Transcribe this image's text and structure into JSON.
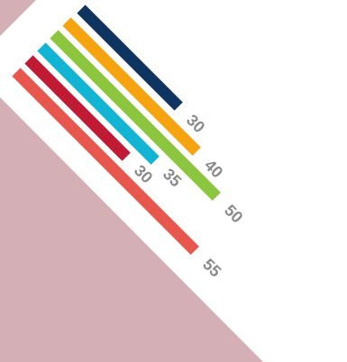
{
  "chart_data": {
    "type": "bar",
    "orientation": "diagonal",
    "background": {
      "panel_color": "#d4afb6",
      "page_color": "#ffffff"
    },
    "labels_rotated": true,
    "series": [
      {
        "value": 30,
        "label": "30",
        "color": "#0f3460"
      },
      {
        "value": 40,
        "label": "40",
        "color": "#f5a30f"
      },
      {
        "value": 50,
        "label": "50",
        "color": "#8cc63f"
      },
      {
        "value": 35,
        "label": "35",
        "color": "#12b4d4"
      },
      {
        "value": 30,
        "label": "30",
        "color": "#c01a35"
      },
      {
        "value": 55,
        "label": "55",
        "color": "#e8574d"
      }
    ]
  }
}
